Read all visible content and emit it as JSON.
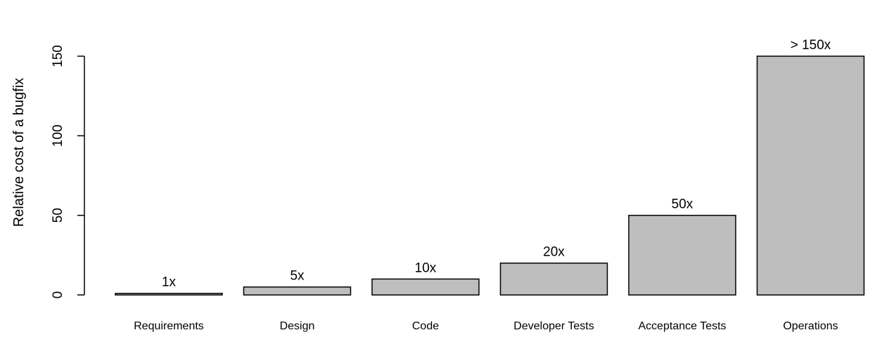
{
  "chart_data": {
    "type": "bar",
    "title": "",
    "xlabel": "",
    "ylabel": "Relative cost of a bugfix",
    "categories": [
      "Requirements",
      "Design",
      "Code",
      "Developer Tests",
      "Acceptance Tests",
      "Operations"
    ],
    "values": [
      1,
      5,
      10,
      20,
      50,
      150
    ],
    "data_labels": [
      "1x",
      "5x",
      "10x",
      "20x",
      "50x",
      "> 150x"
    ],
    "ylim": [
      0,
      150
    ],
    "yticks": [
      0,
      50,
      100,
      150
    ],
    "ytick_labels": [
      "0",
      "50",
      "100",
      "150"
    ],
    "grid": false,
    "legend": "none",
    "bar_color": "#bebebe",
    "edge_color": "#000000"
  }
}
